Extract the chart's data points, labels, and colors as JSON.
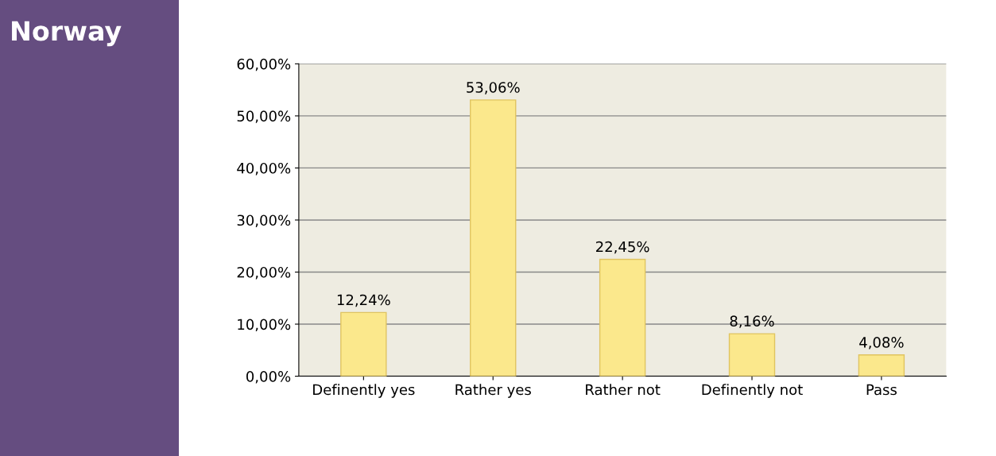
{
  "chart_data": {
    "type": "bar",
    "title": "Norway",
    "categories": [
      "Definently yes",
      "Rather yes",
      "Rather not",
      "Definently not",
      "Pass"
    ],
    "values": [
      12.24,
      53.06,
      22.45,
      8.16,
      4.08
    ],
    "value_labels": [
      "12,24%",
      "53,06%",
      "22,45%",
      "8,16%",
      "4,08%"
    ],
    "color": "#fbe88c",
    "ylim": [
      0,
      60
    ],
    "yticks": [
      {
        "value": 0,
        "label": "0,00%"
      },
      {
        "value": 10,
        "label": "10,00%"
      },
      {
        "value": 20,
        "label": "20,00%"
      },
      {
        "value": 30,
        "label": "30,00%"
      },
      {
        "value": 40,
        "label": "40,00%"
      },
      {
        "value": 50,
        "label": "50,00%"
      },
      {
        "value": 60,
        "label": "60,00%"
      }
    ],
    "grid": "y",
    "legend": false
  }
}
